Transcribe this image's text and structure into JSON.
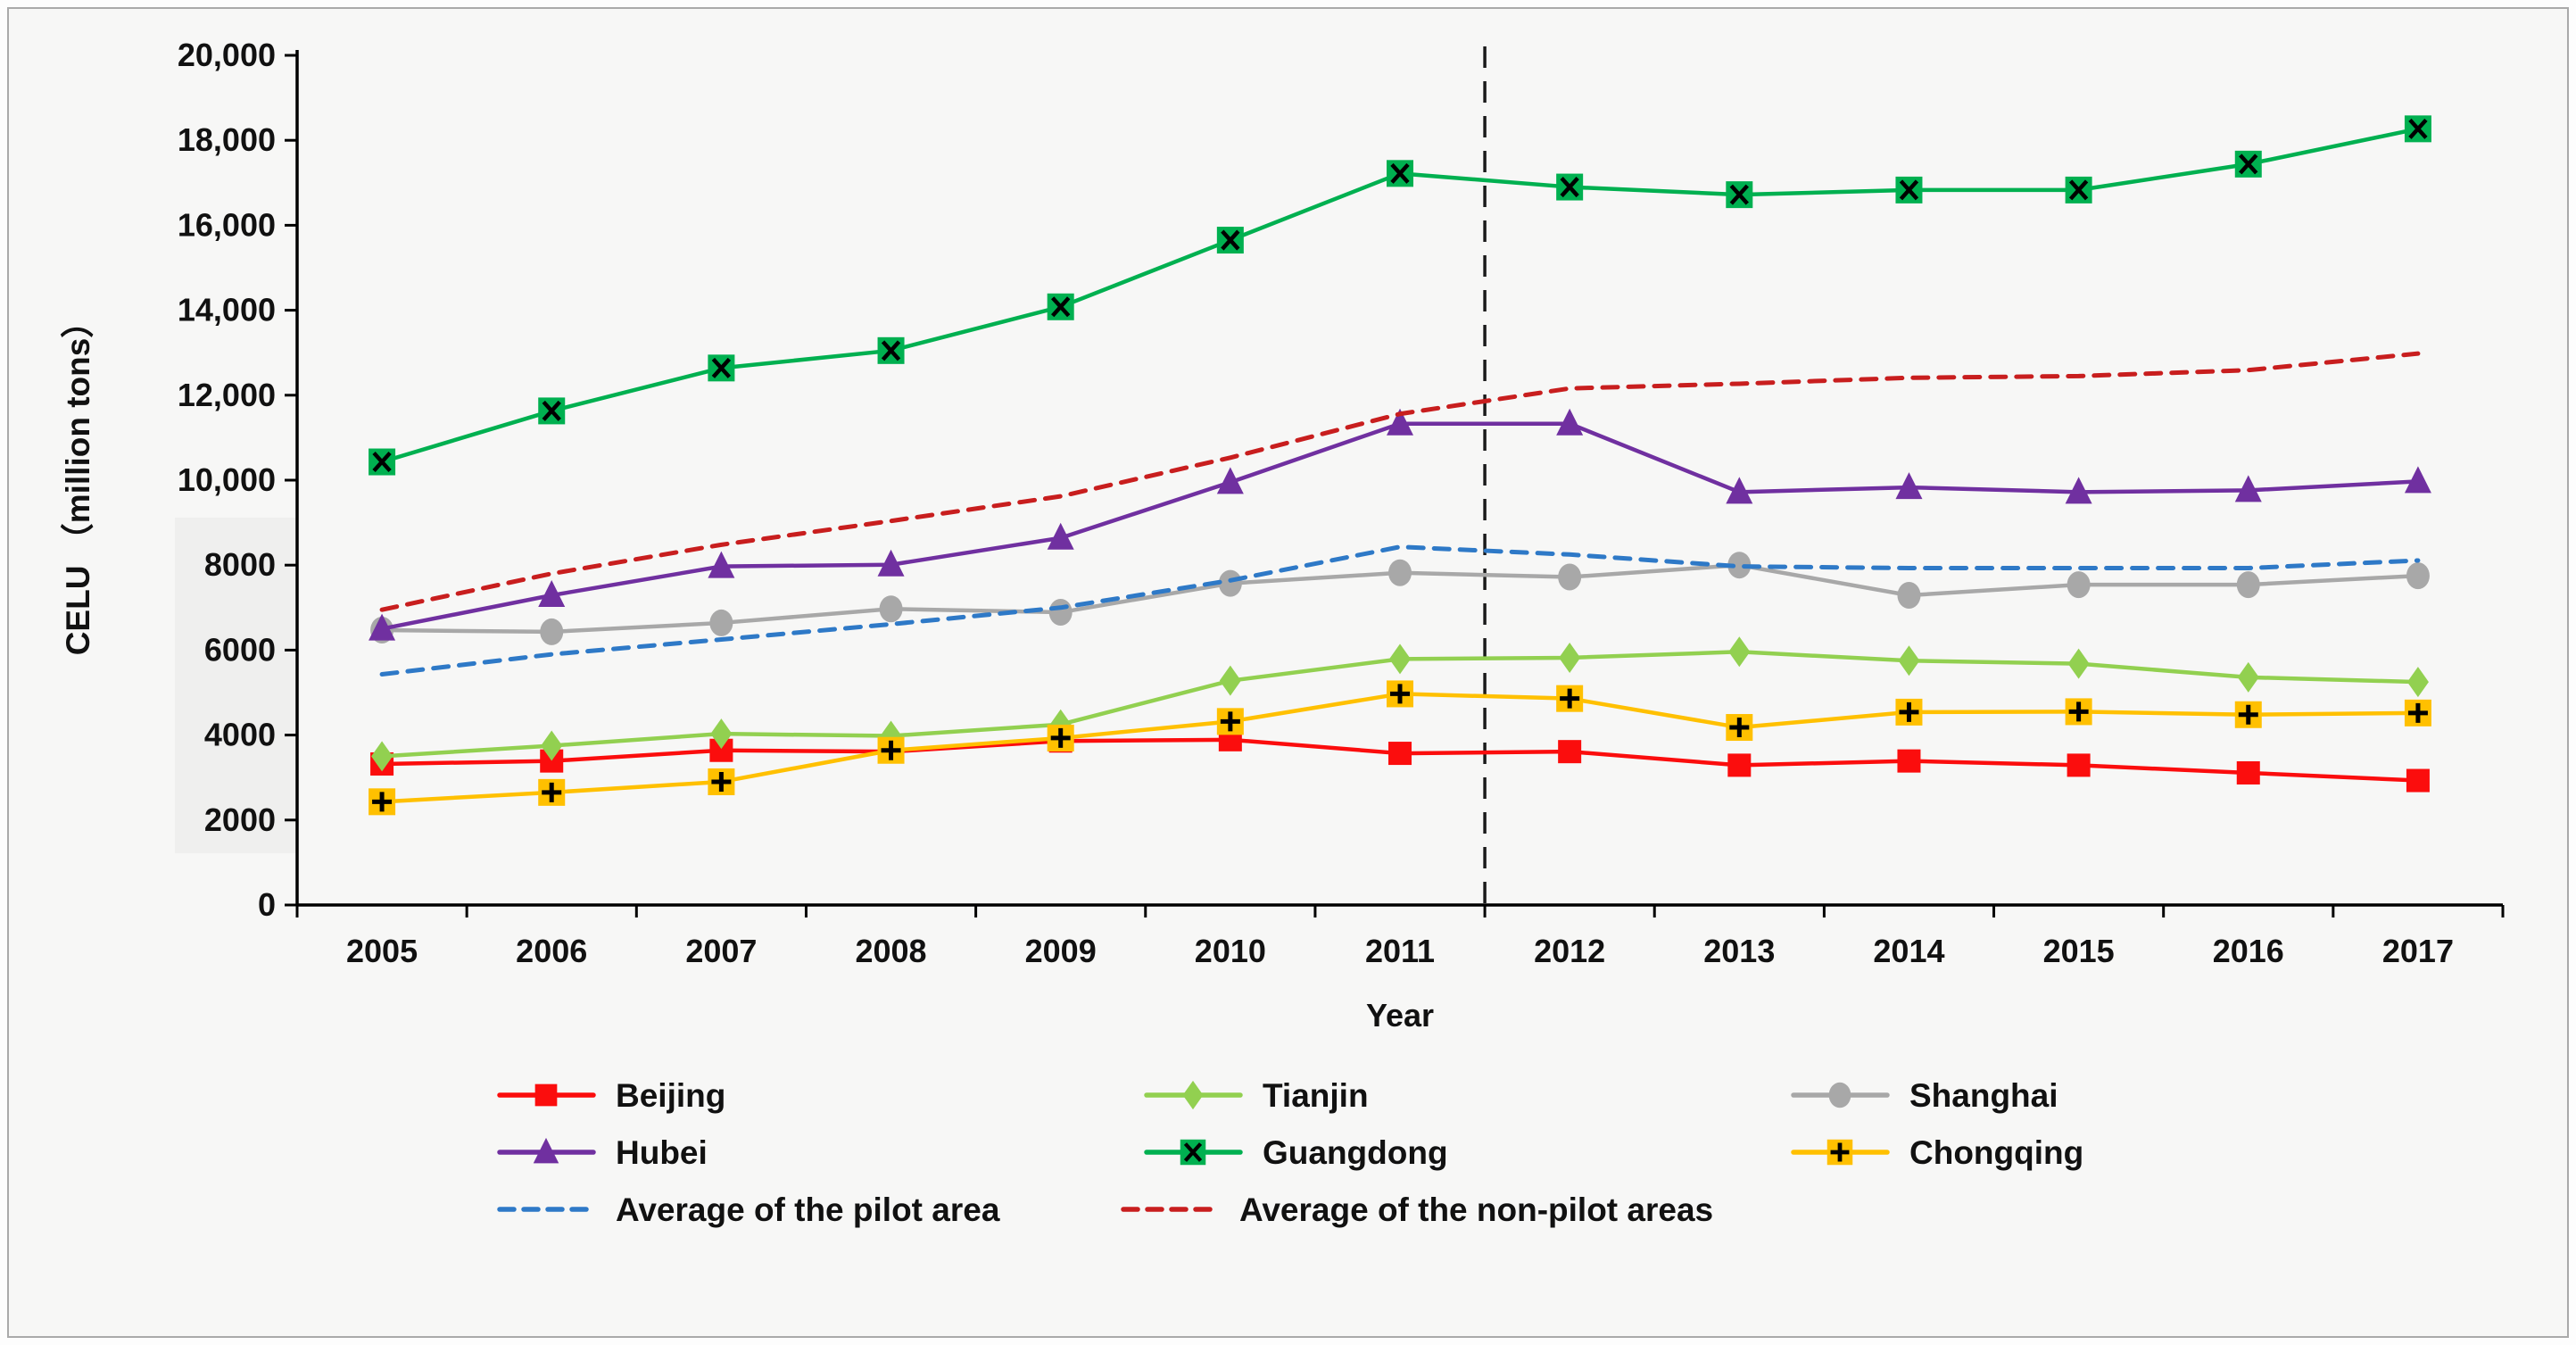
{
  "figure": {
    "background": "#f7f7f6",
    "border_color": "#aaaaaa"
  },
  "chart_data": {
    "type": "line",
    "title": "",
    "xlabel": "Year",
    "ylabel": "CELU （million tons）",
    "x": [
      "2005",
      "2006",
      "2007",
      "2008",
      "2009",
      "2010",
      "2011",
      "2012",
      "2013",
      "2014",
      "2015",
      "2016",
      "2017"
    ],
    "ylim": [
      0,
      20000
    ],
    "ytick_step": 2000,
    "ytick_labels": [
      "0",
      "2000",
      "4000",
      "6000",
      "8000",
      "10,000",
      "12,000",
      "14,000",
      "16,000",
      "18,000",
      "20,000"
    ],
    "grid": false,
    "legend_position": "bottom",
    "annotation": {
      "type": "vline",
      "x_between": [
        "2011",
        "2012"
      ],
      "line_style": "dashed",
      "color": "#1a1a1a"
    },
    "series": [
      {
        "name": "Beijing",
        "color": "#fb0d0d",
        "marker": "square",
        "line_style": "solid",
        "values": [
          3320,
          3390,
          3640,
          3610,
          3860,
          3890,
          3570,
          3610,
          3290,
          3390,
          3290,
          3110,
          2930
        ]
      },
      {
        "name": "Tianjin",
        "color": "#92d050",
        "marker": "diamond",
        "line_style": "solid",
        "values": [
          3500,
          3750,
          4030,
          3980,
          4250,
          5280,
          5790,
          5820,
          5960,
          5750,
          5680,
          5360,
          5250
        ]
      },
      {
        "name": "Shanghai",
        "color": "#a8a8a8",
        "marker": "circle",
        "line_style": "solid",
        "values": [
          6470,
          6430,
          6640,
          6970,
          6890,
          7570,
          7820,
          7720,
          8000,
          7290,
          7540,
          7540,
          7750
        ]
      },
      {
        "name": "Hubei",
        "color": "#7030a0",
        "marker": "triangle",
        "line_style": "solid",
        "values": [
          6500,
          7290,
          7970,
          8010,
          8640,
          9950,
          11330,
          11330,
          9720,
          9830,
          9720,
          9760,
          9970
        ]
      },
      {
        "name": "Guangdong",
        "color": "#00b050",
        "marker": "x-square",
        "line_style": "solid",
        "values": [
          10430,
          11630,
          12640,
          13050,
          14080,
          15650,
          17220,
          16900,
          16720,
          16830,
          16830,
          17440,
          18270
        ]
      },
      {
        "name": "Chongqing",
        "color": "#ffc000",
        "marker": "plus-square",
        "line_style": "solid",
        "values": [
          2430,
          2650,
          2900,
          3640,
          3930,
          4320,
          4970,
          4860,
          4180,
          4540,
          4550,
          4480,
          4520
        ]
      },
      {
        "name": "Average of the pilot area",
        "color": "#2e79c7",
        "marker": "none",
        "line_style": "dashed",
        "values": [
          5430,
          5900,
          6250,
          6610,
          7000,
          7640,
          8430,
          8250,
          7970,
          7930,
          7930,
          7930,
          8110
        ]
      },
      {
        "name": "Average of the non-pilot areas",
        "color": "#c81e1e",
        "marker": "none",
        "line_style": "dashed",
        "values": [
          6950,
          7800,
          8480,
          9040,
          9620,
          10530,
          11560,
          12160,
          12270,
          12410,
          12450,
          12590,
          12980
        ]
      }
    ],
    "legend_rows": [
      [
        "Beijing",
        "Tianjin",
        "Shanghai"
      ],
      [
        "Hubei",
        "Guangdong",
        "Chongqing"
      ],
      [
        "Average of the pilot area",
        "Average of the non-pilot areas"
      ]
    ]
  }
}
